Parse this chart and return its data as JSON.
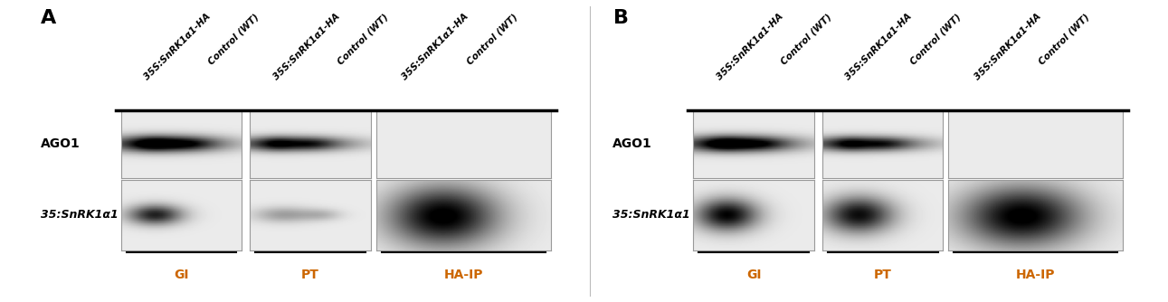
{
  "fig_width": 12.91,
  "fig_height": 3.34,
  "bg_color": "#ffffff",
  "panel_bg": "#ffffff",
  "panel_labels": [
    "A",
    "B"
  ],
  "col_labels": [
    "35S:SnRK1α1-HA",
    "Control (WT)",
    "35S:SnRK1α1-HA",
    "Control (WT)",
    "35S:SnRK1α1-HA",
    "Control (WT)"
  ],
  "row_labels": [
    "AGO1",
    "35:SnRK1α1"
  ],
  "group_labels": [
    "GI",
    "PT",
    "HA-IP"
  ],
  "group_label_color": "#cc6600",
  "panel_label_fontsize": 16,
  "col_label_fontsize": 7.5,
  "row_label_fontsize": 9,
  "group_label_fontsize": 10,
  "panels": [
    "A",
    "B"
  ]
}
